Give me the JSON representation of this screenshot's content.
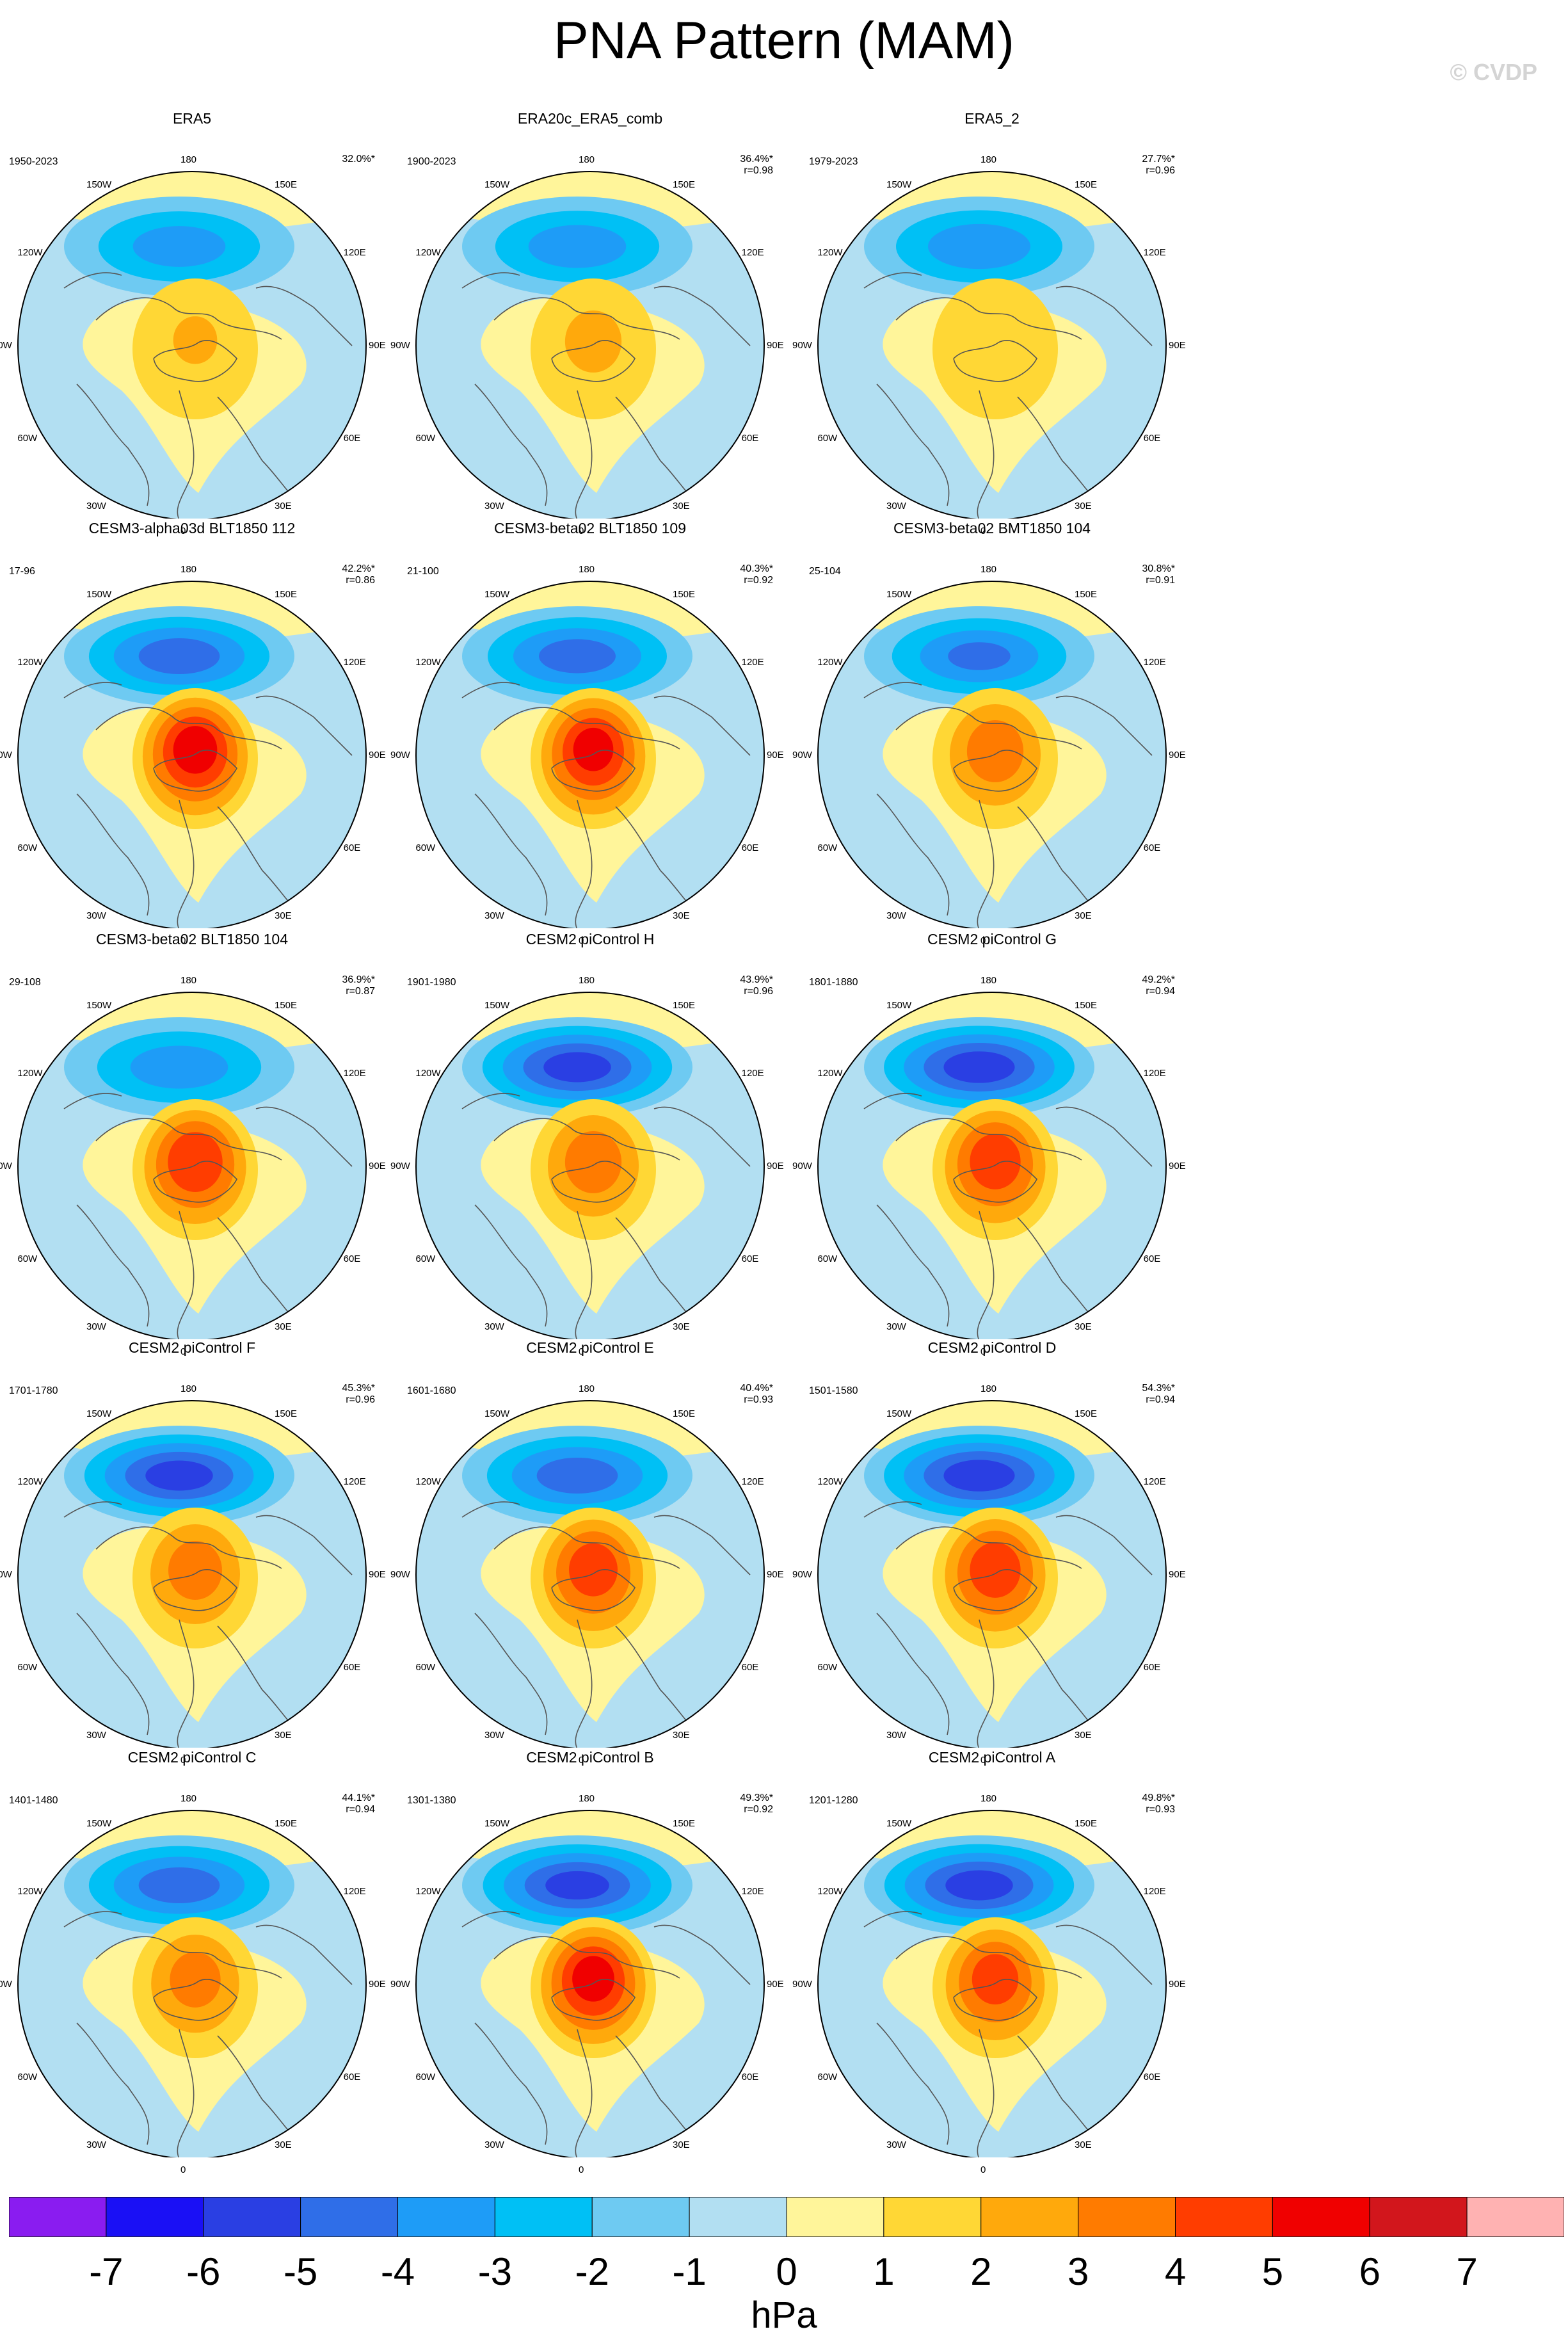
{
  "title": "PNA Pattern (MAM)",
  "watermark": "© CVDP",
  "chart_data": {
    "type": "polar contour map panels",
    "variable": "sea level pressure anomaly regressed on PNA index",
    "units": "hPa",
    "colorbar": {
      "levels": [
        -7,
        -6,
        -5,
        -4,
        -3,
        -2,
        -1,
        0,
        1,
        2,
        3,
        4,
        5,
        6,
        7
      ],
      "colors": [
        "#8a1cf0",
        "#1a10f5",
        "#2a3fe3",
        "#2f6ee8",
        "#1e9cf7",
        "#00c0f5",
        "#6ecaf2",
        "#b2dff2",
        "#fff59a",
        "#ffd735",
        "#ffa90c",
        "#ff7b00",
        "#ff3d00",
        "#f00000",
        "#d2161c",
        "#ffb2b2"
      ]
    },
    "longitude_labels": [
      "180",
      "150E",
      "120E",
      "90E",
      "60E",
      "30E",
      "0",
      "30W",
      "60W",
      "90W",
      "120W",
      "150W"
    ],
    "panels": [
      {
        "name": "ERA5",
        "period": "1950-2023",
        "variance": "32.0%*",
        "r": "",
        "neg_min": -3.6,
        "pos_max": 2.1
      },
      {
        "name": "ERA20c_ERA5_comb",
        "period": "1900-2023",
        "variance": "36.4%*",
        "r": "r=0.98",
        "neg_min": -3.7,
        "pos_max": 2.3
      },
      {
        "name": "ERA5_2",
        "period": "1979-2023",
        "variance": "27.7%*",
        "r": "r=0.96",
        "neg_min": -3.8,
        "pos_max": 1.8
      },
      {
        "name": "CESM3-alpha03d BLT1850 112",
        "period": "17-96",
        "variance": "42.2%*",
        "r": "r=0.86",
        "neg_min": -4.6,
        "pos_max": 5.4
      },
      {
        "name": "CESM3-beta02 BLT1850 109",
        "period": "21-100",
        "variance": "40.3%*",
        "r": "r=0.92",
        "neg_min": -4.5,
        "pos_max": 5.2
      },
      {
        "name": "CESM3-beta02 BMT1850 104",
        "period": "25-104",
        "variance": "30.8%*",
        "r": "r=0.91",
        "neg_min": -4.2,
        "pos_max": 3.6
      },
      {
        "name": "CESM3-beta02 BLT1850 104",
        "period": "29-108",
        "variance": "36.9%*",
        "r": "r=0.87",
        "neg_min": -3.7,
        "pos_max": 4.8
      },
      {
        "name": "CESM2 piControl H",
        "period": "1901-1980",
        "variance": "43.9%*",
        "r": "r=0.96",
        "neg_min": -5.4,
        "pos_max": 3.6
      },
      {
        "name": "CESM2 piControl G",
        "period": "1801-1880",
        "variance": "49.2%*",
        "r": "r=0.94",
        "neg_min": -5.5,
        "pos_max": 4.6
      },
      {
        "name": "CESM2 piControl F",
        "period": "1701-1780",
        "variance": "45.3%*",
        "r": "r=0.96",
        "neg_min": -5.4,
        "pos_max": 3.5
      },
      {
        "name": "CESM2 piControl E",
        "period": "1601-1680",
        "variance": "40.4%*",
        "r": "r=0.93",
        "neg_min": -4.6,
        "pos_max": 4.5
      },
      {
        "name": "CESM2 piControl D",
        "period": "1501-1580",
        "variance": "54.3%*",
        "r": "r=0.94",
        "neg_min": -5.5,
        "pos_max": 4.6
      },
      {
        "name": "CESM2 piControl C",
        "period": "1401-1480",
        "variance": "44.1%*",
        "r": "r=0.94",
        "neg_min": -4.6,
        "pos_max": 3.4
      },
      {
        "name": "CESM2 piControl B",
        "period": "1301-1380",
        "variance": "49.3%*",
        "r": "r=0.92",
        "neg_min": -5.3,
        "pos_max": 5.3
      },
      {
        "name": "CESM2 piControl A",
        "period": "1201-1280",
        "variance": "49.8%*",
        "r": "r=0.93",
        "neg_min": -5.4,
        "pos_max": 4.4
      }
    ]
  }
}
